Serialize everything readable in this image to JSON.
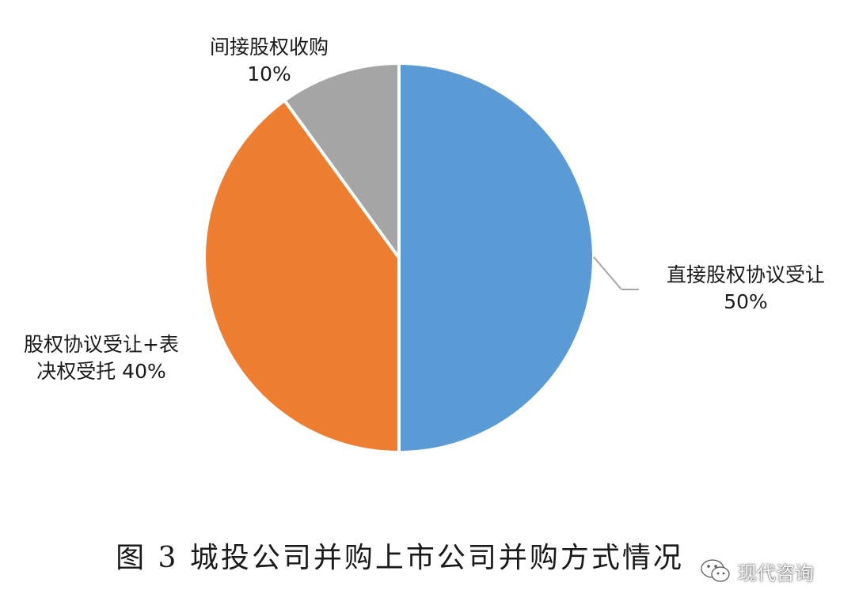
{
  "chart_data": {
    "type": "pie",
    "title": "",
    "slices": [
      {
        "name": "直接股权协议受让",
        "value": 50,
        "label_lines": [
          "直接股权协议受让",
          "50%"
        ],
        "color": "#5b9bd5"
      },
      {
        "name": "股权协议受让+表决权受托",
        "value": 40,
        "label_lines": [
          "股权协议受让+表",
          "决权受托 40%"
        ],
        "color": "#ed7d31"
      },
      {
        "name": "间接股权收购",
        "value": 10,
        "label_lines": [
          "间接股权收购",
          "10%"
        ],
        "color": "#a5a5a5"
      }
    ],
    "start_angle": "12 o'clock, clockwise",
    "legend": "none (data labels)"
  },
  "caption": "图 3  城投公司并购上市公司并购方式情况",
  "watermark": {
    "icon": "wechat-icon",
    "text": "现代咨询"
  }
}
